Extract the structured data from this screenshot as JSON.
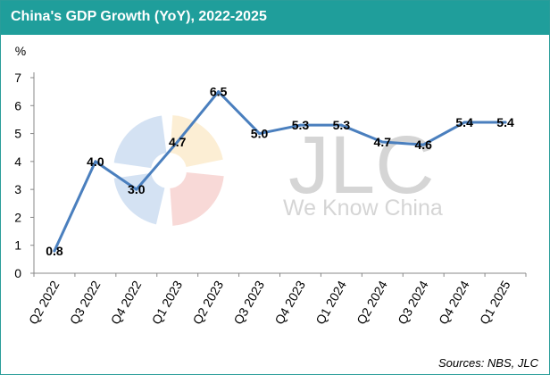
{
  "chart_data": {
    "type": "line",
    "title": "China's GDP Growth (YoY), 2022-2025",
    "ylabel": "%",
    "xlabel": "",
    "categories": [
      "Q2 2022",
      "Q3 2022",
      "Q4 2022",
      "Q1 2023",
      "Q2 2023",
      "Q3 2023",
      "Q4 2023",
      "Q1 2024",
      "Q2 2024",
      "Q3 2024",
      "Q4 2024",
      "Q1 2025"
    ],
    "series": [
      {
        "values": [
          0.8,
          4.0,
          3.0,
          4.7,
          6.5,
          5.0,
          5.3,
          5.3,
          4.7,
          4.6,
          5.4,
          5.4
        ],
        "labels": [
          "0.8",
          "4.0",
          "3.0",
          "4.7",
          "6.5",
          "5.0",
          "5.3",
          "5.3",
          "4.7",
          "4.6",
          "5.4",
          "5.4"
        ],
        "color": "#4a7fbe"
      }
    ],
    "ylim": [
      0,
      7
    ],
    "yticks": [
      0,
      1,
      2,
      3,
      4,
      5,
      6,
      7
    ],
    "grid": false,
    "legend": "none",
    "source": "Sources: NBS, JLC",
    "watermark": {
      "text": "JLC",
      "tagline": "We Know China"
    }
  },
  "colors": {
    "header": "#1f9e9b",
    "line": "#4a7fbe"
  }
}
